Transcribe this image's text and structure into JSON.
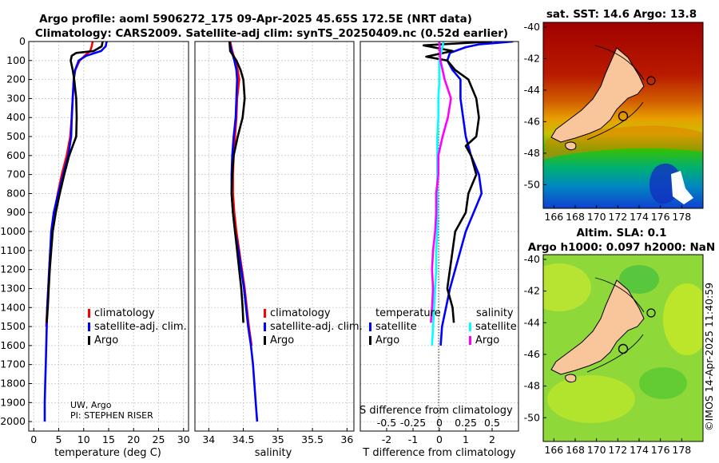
{
  "figure": {
    "title_line1": "Argo profile: aoml 5906272_175 09-Apr-2025 45.65S 172.5E (NRT data)",
    "title_line2": "Climatology: CARS2009. Satellite-adj clim: synTS_20250409.nc (0.52d earlier)",
    "credit": "©IMOS 14-Apr-2025 11:40:59"
  },
  "colors": {
    "climatology": "#ff0000",
    "satellite": "#0000ff",
    "argo": "#000000",
    "sat_salinity": "#00ffff",
    "clim_salinity": "#ff00ff",
    "land": "#f9c59b"
  },
  "chart_data": [
    {
      "type": "line",
      "name": "temperature-profile",
      "xlabel": "temperature (deg C)",
      "ylabel": "",
      "xlim": [
        -1,
        31
      ],
      "ylim": [
        2050,
        0
      ],
      "xticks": [
        "0",
        "5",
        "10",
        "15",
        "20",
        "25",
        "30"
      ],
      "xtick_values": [
        0,
        5,
        10,
        15,
        20,
        25,
        30
      ],
      "yticks": [
        "0",
        "100",
        "200",
        "300",
        "400",
        "500",
        "600",
        "700",
        "800",
        "900",
        "1000",
        "1100",
        "1200",
        "1300",
        "1400",
        "1500",
        "1600",
        "1700",
        "1800",
        "1900",
        "2000"
      ],
      "ytick_values": [
        0,
        100,
        200,
        300,
        400,
        500,
        600,
        700,
        800,
        900,
        1000,
        1100,
        1200,
        1300,
        1400,
        1500,
        1600,
        1700,
        1800,
        1900,
        2000
      ],
      "legend": [
        "climatology",
        "satellite-adj. clim.",
        "Argo"
      ],
      "annotation": [
        "UW, Argo",
        "PI: STEPHEN RISER"
      ],
      "series": [
        {
          "name": "climatology",
          "color": "#ff0000",
          "depth": [
            0,
            25,
            50,
            75,
            100,
            150,
            200,
            300,
            400,
            500,
            600,
            700,
            800,
            900,
            1000,
            1100,
            1200,
            1300,
            1400,
            1500
          ],
          "values": [
            11.8,
            11.6,
            11.3,
            10.2,
            9.2,
            8.3,
            8.0,
            7.8,
            7.6,
            7.3,
            6.6,
            5.6,
            4.8,
            4.1,
            3.6,
            3.3,
            3.1,
            2.9,
            2.7,
            2.5
          ]
        },
        {
          "name": "satellite-adj. clim.",
          "color": "#0000ff",
          "depth": [
            0,
            25,
            50,
            75,
            100,
            150,
            200,
            300,
            400,
            500,
            600,
            700,
            800,
            900,
            1000,
            1100,
            1200,
            1300,
            1400,
            1500,
            1600,
            1700,
            1800,
            1900,
            2000
          ],
          "values": [
            14.6,
            14.4,
            13.5,
            10.5,
            9.0,
            8.3,
            8.0,
            7.8,
            7.6,
            7.5,
            6.9,
            5.9,
            4.9,
            4.0,
            3.5,
            3.3,
            3.1,
            2.9,
            2.7,
            2.6,
            2.5,
            2.4,
            2.3,
            2.2,
            2.2
          ]
        },
        {
          "name": "Argo",
          "color": "#000000",
          "depth": [
            0,
            25,
            50,
            60,
            75,
            100,
            150,
            200,
            300,
            400,
            500,
            600,
            700,
            800,
            900,
            1000,
            1100,
            1200,
            1300,
            1400,
            1480
          ],
          "values": [
            13.8,
            13.6,
            12.0,
            8.5,
            7.6,
            7.4,
            7.8,
            8.1,
            8.5,
            8.6,
            8.5,
            7.1,
            6.1,
            5.2,
            4.4,
            3.8,
            3.5,
            3.2,
            3.0,
            2.8,
            2.6
          ]
        }
      ]
    },
    {
      "type": "line",
      "name": "salinity-profile",
      "xlabel": "salinity",
      "xlim": [
        33.8,
        36.1
      ],
      "ylim": [
        2050,
        0
      ],
      "xticks": [
        "34",
        "34.5",
        "35",
        "35.5",
        "36"
      ],
      "xtick_values": [
        34,
        34.5,
        35,
        35.5,
        36
      ],
      "legend": [
        "climatology",
        "satellite-adj. clim.",
        "Argo"
      ],
      "series": [
        {
          "name": "climatology",
          "color": "#ff0000",
          "depth": [
            0,
            50,
            100,
            150,
            200,
            300,
            400,
            500,
            600,
            700,
            800,
            900,
            1000,
            1100,
            1200,
            1300,
            1400,
            1500,
            1600
          ],
          "values": [
            34.31,
            34.34,
            34.38,
            34.42,
            34.44,
            34.41,
            34.4,
            34.38,
            34.36,
            34.35,
            34.35,
            34.37,
            34.4,
            34.44,
            34.48,
            34.52,
            34.55,
            34.58,
            34.62
          ]
        },
        {
          "name": "satellite-adj. clim.",
          "color": "#0000ff",
          "depth": [
            0,
            50,
            100,
            150,
            200,
            300,
            400,
            500,
            600,
            700,
            800,
            900,
            1000,
            1100,
            1200,
            1300,
            1400,
            1500,
            1600,
            1700,
            1800,
            1900,
            2000
          ],
          "values": [
            34.3,
            34.33,
            34.37,
            34.4,
            34.41,
            34.4,
            34.39,
            34.36,
            34.34,
            34.33,
            34.33,
            34.35,
            34.38,
            34.43,
            34.47,
            34.51,
            34.54,
            34.57,
            34.61,
            34.64,
            34.66,
            34.68,
            34.7
          ]
        },
        {
          "name": "Argo",
          "color": "#000000",
          "depth": [
            0,
            50,
            100,
            150,
            200,
            300,
            400,
            500,
            600,
            700,
            800,
            900,
            1000,
            1100,
            1200,
            1300,
            1400,
            1480
          ],
          "values": [
            34.3,
            34.31,
            34.4,
            34.46,
            34.5,
            34.52,
            34.49,
            34.42,
            34.36,
            34.34,
            34.33,
            34.35,
            34.38,
            34.41,
            34.44,
            34.47,
            34.49,
            34.5
          ]
        }
      ]
    },
    {
      "type": "line",
      "name": "difference-profile",
      "xlabel": "T difference from climatology",
      "xlabel_top": "S difference from climatology",
      "xlim": [
        -3,
        3
      ],
      "ylim": [
        2050,
        0
      ],
      "xticks": [
        "-2",
        "-1",
        "0",
        "1",
        "2"
      ],
      "xtick_values": [
        -2,
        -1,
        0,
        1,
        2
      ],
      "xticks_top": [
        "-0.5",
        "-0.25",
        "0",
        "0.25",
        "0.5"
      ],
      "xtick_top_values": [
        -0.5,
        -0.25,
        0,
        0.25,
        0.5
      ],
      "legend_temperature": {
        "title": "temperature",
        "items": [
          "satellite",
          "Argo"
        ]
      },
      "legend_salinity": {
        "title": "salinity",
        "items": [
          "satellite",
          "Argo"
        ]
      },
      "series": [
        {
          "name": "T satellite",
          "color": "#0000ff",
          "depth": [
            0,
            15,
            30,
            60,
            100,
            150,
            200,
            300,
            400,
            500,
            600,
            700,
            800,
            900,
            1000,
            1100,
            1200,
            1300,
            1400,
            1500,
            1600
          ],
          "values": [
            2.8,
            1.5,
            1.0,
            0.4,
            0.3,
            0.5,
            0.8,
            0.8,
            0.9,
            1.0,
            1.2,
            1.5,
            1.6,
            1.3,
            1.0,
            0.8,
            0.6,
            0.4,
            0.25,
            0.1,
            0.05
          ]
        },
        {
          "name": "T Argo",
          "color": "#000000",
          "depth": [
            0,
            20,
            50,
            80,
            100,
            150,
            200,
            300,
            400,
            500,
            550,
            600,
            700,
            800,
            900,
            1000,
            1100,
            1200,
            1300,
            1400,
            1480
          ],
          "values": [
            2.0,
            -0.6,
            0.5,
            -0.5,
            0.3,
            0.6,
            1.1,
            1.4,
            1.5,
            1.4,
            1.0,
            1.2,
            1.4,
            1.1,
            1.0,
            0.6,
            0.5,
            0.4,
            0.3,
            0.5,
            0.55
          ]
        },
        {
          "name": "S satellite",
          "color": "#00ffff",
          "depth": [
            0,
            50,
            100,
            200,
            300,
            400,
            500,
            600,
            700,
            800,
            900,
            1000,
            1100,
            1200,
            1300,
            1400,
            1500,
            1600
          ],
          "values": [
            0.04,
            0.02,
            0.0,
            0.0,
            -0.01,
            -0.01,
            -0.02,
            -0.02,
            -0.02,
            -0.02,
            -0.02,
            -0.02,
            -0.03,
            -0.03,
            -0.04,
            -0.05,
            -0.06,
            -0.07
          ]
        },
        {
          "name": "S Argo",
          "color": "#ff00ff",
          "depth": [
            0,
            100,
            200,
            300,
            400,
            500,
            600,
            700,
            800,
            900,
            1000,
            1100,
            1200,
            1300,
            1400,
            1480
          ],
          "values": [
            0.0,
            0.01,
            0.05,
            0.11,
            0.08,
            0.03,
            -0.01,
            -0.01,
            -0.03,
            -0.03,
            -0.04,
            -0.06,
            -0.07,
            -0.06,
            -0.07,
            -0.08
          ]
        }
      ]
    },
    {
      "type": "heatmap",
      "name": "sst-map",
      "title": "sat. SST: 14.6 Argo: 13.8",
      "xticks": [
        "166",
        "168",
        "170",
        "172",
        "174",
        "176",
        "178"
      ],
      "xtick_values": [
        166,
        168,
        170,
        172,
        174,
        176,
        178
      ],
      "yticks": [
        "-40",
        "-42",
        "-44",
        "-46",
        "-48",
        "-50"
      ],
      "ytick_values": [
        -40,
        -42,
        -44,
        -46,
        -48,
        -50
      ],
      "xlim": [
        165,
        180
      ],
      "ylim": [
        -51.5,
        -39.7
      ],
      "profile_location": [
        172.5,
        -45.65
      ]
    },
    {
      "type": "heatmap",
      "name": "sla-map",
      "title_line1": "Altim. SLA: 0.1",
      "title_line2": "Argo h1000: 0.097 h2000: NaN",
      "xticks": [
        "166",
        "168",
        "170",
        "172",
        "174",
        "176",
        "178"
      ],
      "xtick_values": [
        166,
        168,
        170,
        172,
        174,
        176,
        178
      ],
      "yticks": [
        "-40",
        "-42",
        "-44",
        "-46",
        "-48",
        "-50"
      ],
      "ytick_values": [
        -40,
        -42,
        -44,
        -46,
        -48,
        -50
      ],
      "xlim": [
        165,
        180
      ],
      "ylim": [
        -51.5,
        -39.7
      ],
      "profile_location": [
        172.5,
        -45.65
      ]
    }
  ]
}
